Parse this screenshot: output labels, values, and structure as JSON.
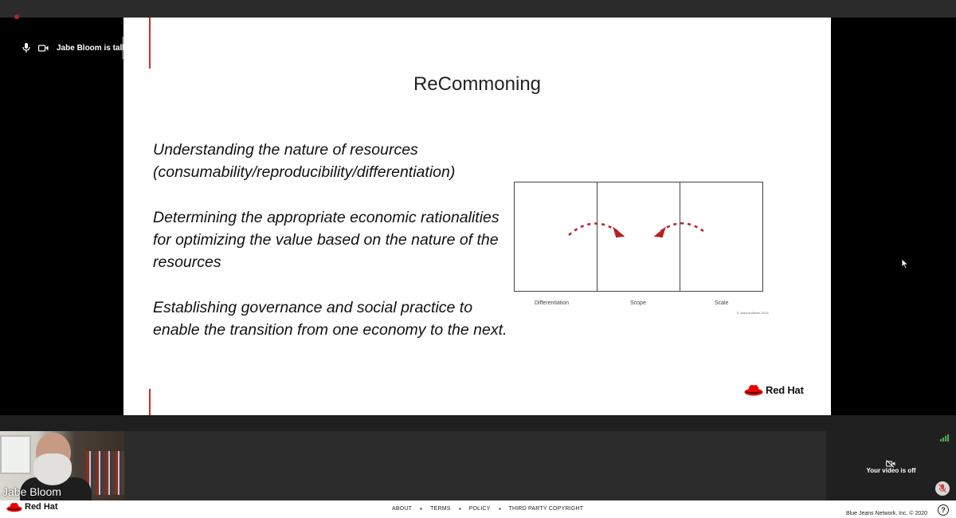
{
  "meeting": {
    "talking_label": "Jabe Bloom is talking",
    "participant_name": "Jabe Bloom",
    "self_video_status": "Your video is off"
  },
  "slide": {
    "title": "ReCommoning",
    "bullets": [
      "Understanding the nature of resources (consumability/reproducibility/differentiation)",
      "Determining the appropriate economic rationalities for optimizing the value based on the nature of the resources",
      "Establishing governance and social practice to enable the transition from one economy to the next."
    ],
    "diagram": {
      "labels": [
        "Differentiation",
        "Scope",
        "Scale"
      ],
      "copyright": "© Joshua Bloom 2019"
    },
    "brand": "Red Hat"
  },
  "footer": {
    "brand": "Red Hat",
    "links": [
      "ABOUT",
      "TERMS",
      "POLICY",
      "THIRD PARTY COPYRIGHT"
    ],
    "copyright": "Blue Jeans Network, Inc. © 2020",
    "help": "?"
  },
  "colors": {
    "accent_red": "#cc2b2b",
    "signal_green": "#4caf50"
  },
  "icons": [
    "microphone-icon",
    "video-camera-icon",
    "video-off-icon",
    "mic-muted-icon",
    "help-icon",
    "red-hat-logo",
    "signal-icon",
    "cursor-icon"
  ]
}
